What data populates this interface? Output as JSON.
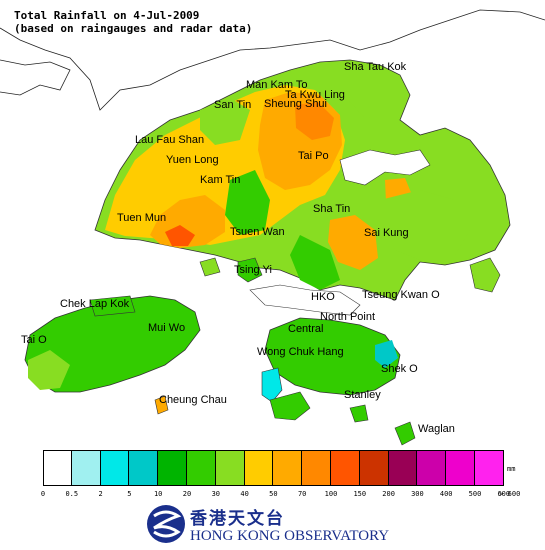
{
  "title": {
    "line1": "Total Rainfall on 4-Jul-2009",
    "line2": "(based on raingauges and radar data)"
  },
  "places": [
    {
      "name": "Sha Tau Kok"
    },
    {
      "name": "Man Kam To"
    },
    {
      "name": "Ta Kwu Ling"
    },
    {
      "name": "Sheung Shui"
    },
    {
      "name": "San Tin"
    },
    {
      "name": "Lau Fau Shan"
    },
    {
      "name": "Yuen Long"
    },
    {
      "name": "Tai Po"
    },
    {
      "name": "Kam Tin"
    },
    {
      "name": "Sha Tin"
    },
    {
      "name": "Tuen Mun"
    },
    {
      "name": "Tsuen Wan"
    },
    {
      "name": "Sai Kung"
    },
    {
      "name": "Tsing Yi"
    },
    {
      "name": "Chek Lap Kok"
    },
    {
      "name": "HKO"
    },
    {
      "name": "Tseung Kwan O"
    },
    {
      "name": "North Point"
    },
    {
      "name": "Tai O"
    },
    {
      "name": "Mui Wo"
    },
    {
      "name": "Central"
    },
    {
      "name": "Wong Chuk Hang"
    },
    {
      "name": "Shek O"
    },
    {
      "name": "Cheung Chau"
    },
    {
      "name": "Stanley"
    },
    {
      "name": "Waglan"
    }
  ],
  "legend": {
    "unit": "mm",
    "colors": [
      "#ffffff",
      "#a0f0f0",
      "#00e8e8",
      "#00c8c8",
      "#00b400",
      "#33cc00",
      "#88dd22",
      "#ffcc00",
      "#ffaa00",
      "#ff8800",
      "#ff5500",
      "#cc3300",
      "#990055",
      "#cc00aa",
      "#ee00cc",
      "#ff22ee",
      "#ff77ee",
      "#ffaaf5",
      "#ffddff"
    ],
    "ticks": [
      "0",
      "0.5",
      "2",
      "5",
      "10",
      "20",
      "30",
      "40",
      "50",
      "70",
      "100",
      "150",
      "200",
      "300",
      "400",
      "500",
      "600",
      "> 600"
    ]
  },
  "logo": {
    "chinese": "香港天文台",
    "english": "HONG KONG OBSERVATORY"
  }
}
